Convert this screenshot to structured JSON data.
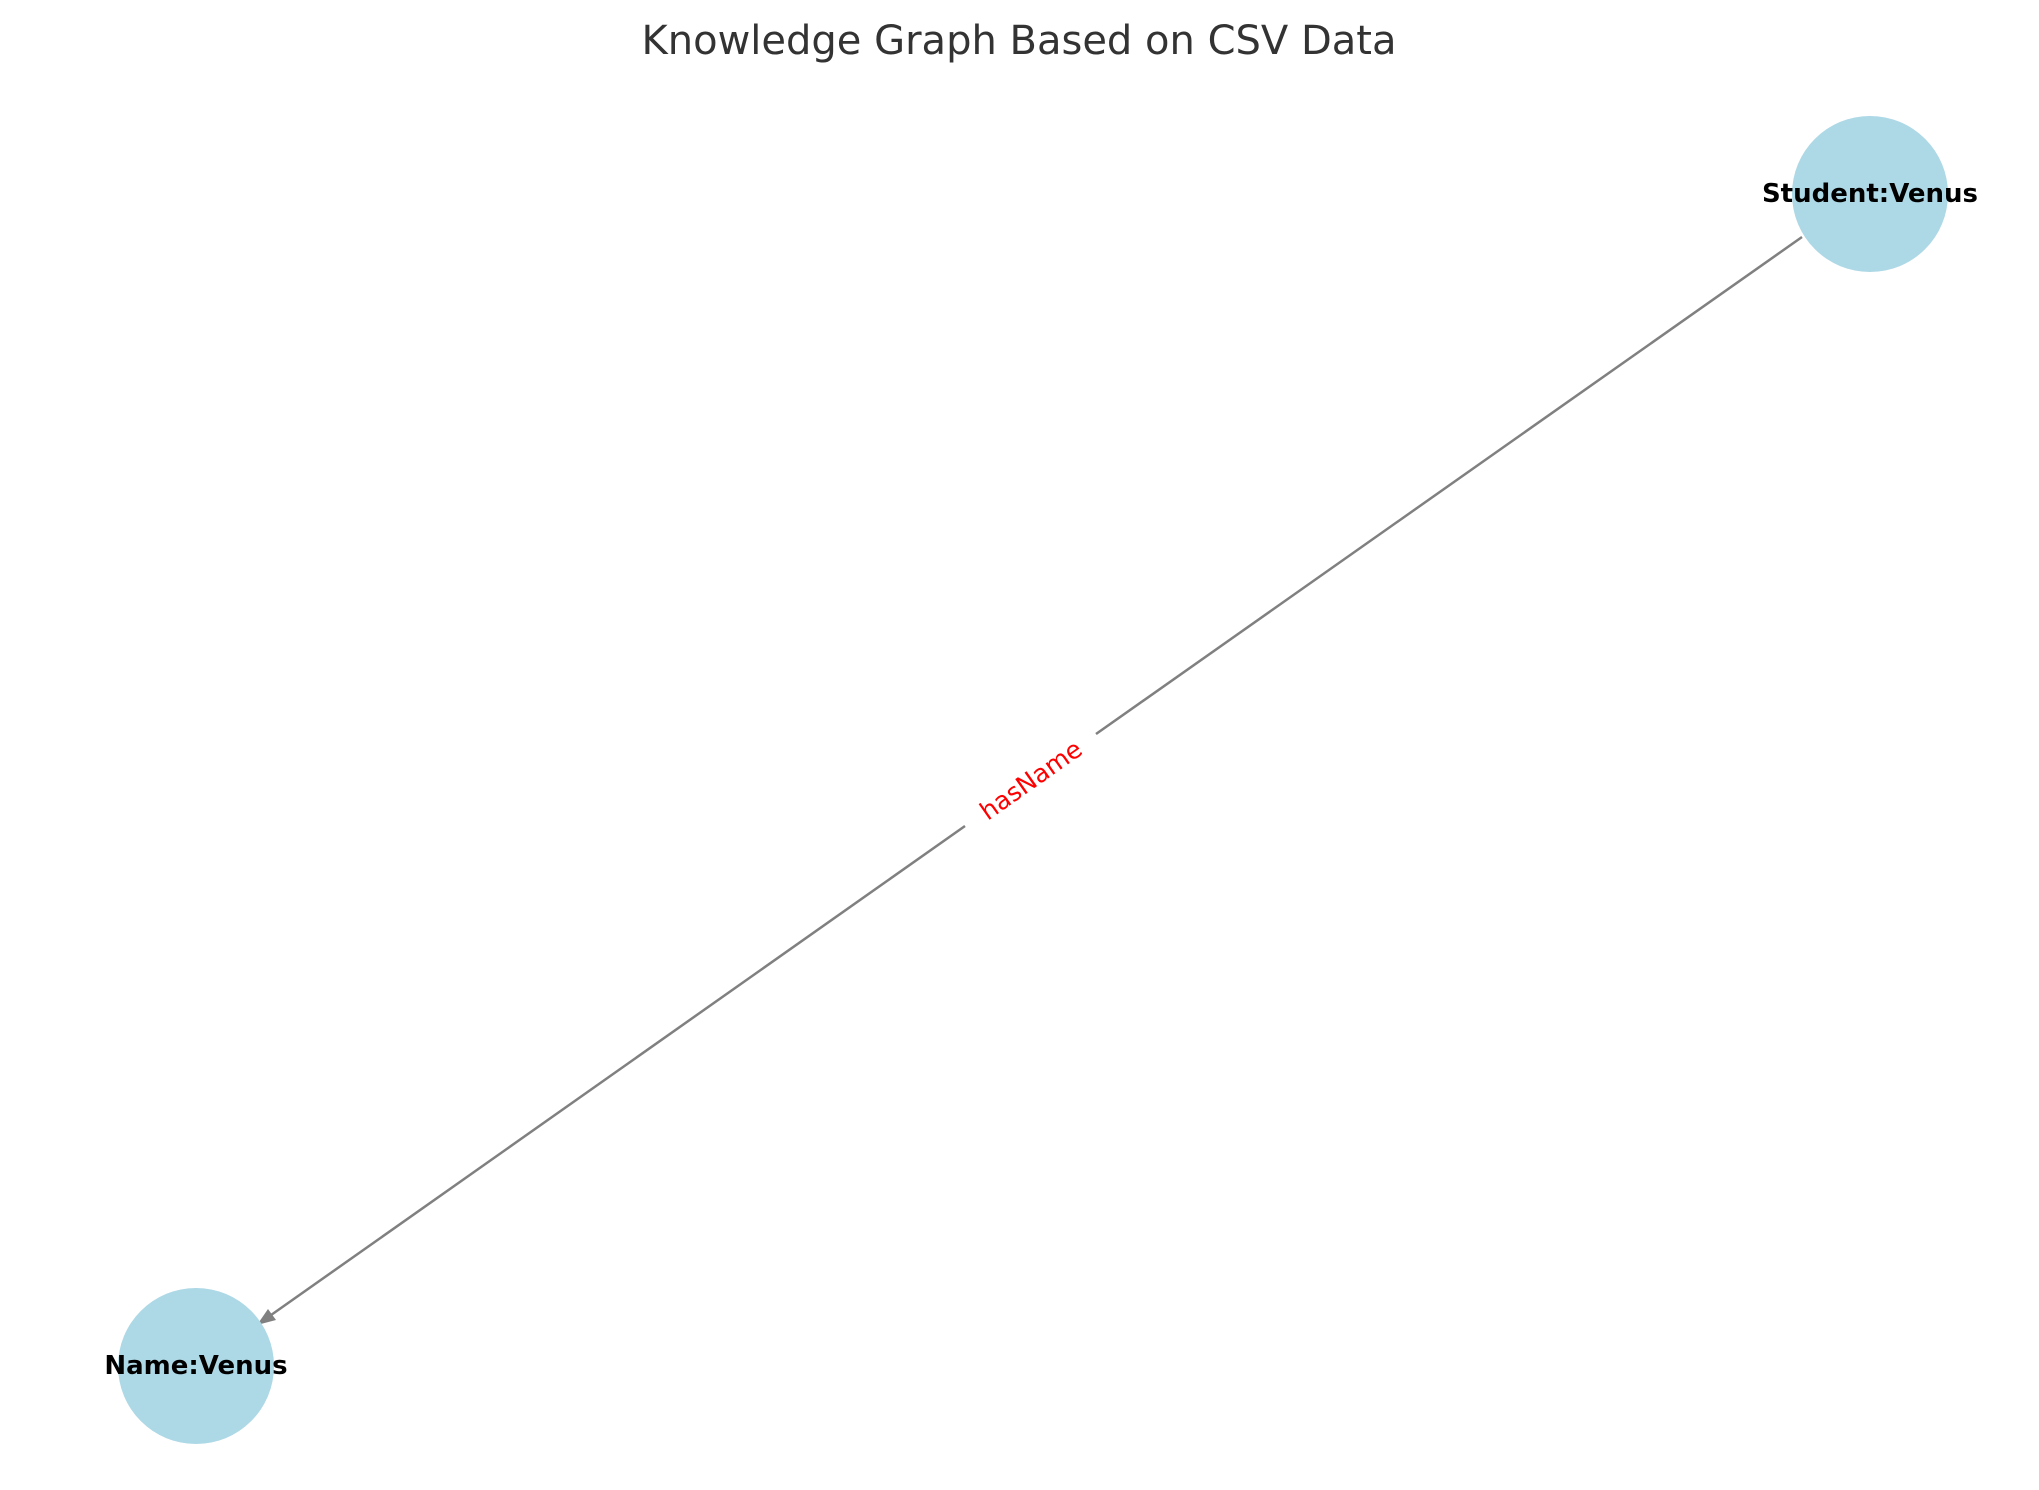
{
  "title": "Knowledge Graph Based on CSV Data",
  "colors": {
    "title": "#333333",
    "node_fill": "#add8e6",
    "node_text": "#000000",
    "edge": "#808080",
    "edge_label": "#ff0000",
    "background": "#ffffff"
  },
  "nodes": [
    {
      "id": "student",
      "label": "Student:Venus"
    },
    {
      "id": "name",
      "label": "Name:Venus"
    }
  ],
  "edges": [
    {
      "source": "student",
      "target": "name",
      "label": "hasName",
      "directed": true
    }
  ]
}
